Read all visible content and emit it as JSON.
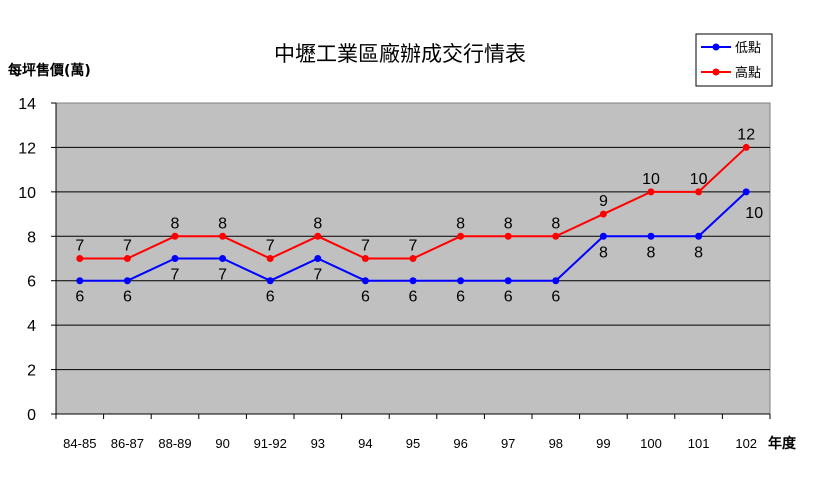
{
  "chart_data": {
    "type": "line",
    "title": "中壢工業區廠辦成交行情表",
    "ylabel": "每坪售價(萬)",
    "xlabel": "年度",
    "ylim": [
      0,
      14
    ],
    "yticks": [
      0,
      2,
      4,
      6,
      8,
      10,
      12,
      14
    ],
    "grid": true,
    "legend_position": "top-right",
    "categories": [
      "84-85",
      "86-87",
      "88-89",
      "90",
      "91-92",
      "93",
      "94",
      "95",
      "96",
      "97",
      "98",
      "99",
      "100",
      "101",
      "102"
    ],
    "series": [
      {
        "name": "低點",
        "color": "#0000ff",
        "values": [
          6,
          6,
          7,
          7,
          6,
          7,
          6,
          6,
          6,
          6,
          6,
          8,
          8,
          8,
          10
        ],
        "label_pos": "below"
      },
      {
        "name": "高點",
        "color": "#ff0000",
        "values": [
          7,
          7,
          8,
          8,
          7,
          8,
          7,
          7,
          8,
          8,
          8,
          9,
          10,
          10,
          12
        ],
        "label_pos": "above"
      }
    ],
    "plot_bg": "#c0c0c0"
  }
}
